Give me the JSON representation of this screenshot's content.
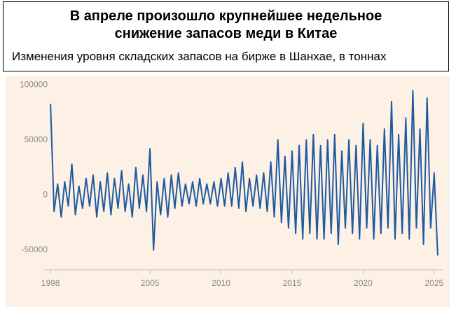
{
  "chart_data": {
    "type": "line",
    "title": "В апреле произошло крупнейшее недельное снижение запасов меди в Китае",
    "subtitle": "Изменения уровня складских запасов на бирже в Шанхае, в тоннах",
    "x": [
      1998,
      1998.25,
      1998.5,
      1998.75,
      1999,
      1999.25,
      1999.5,
      1999.75,
      2000,
      2000.25,
      2000.5,
      2000.75,
      2001,
      2001.25,
      2001.5,
      2001.75,
      2002,
      2002.25,
      2002.5,
      2002.75,
      2003,
      2003.25,
      2003.5,
      2003.75,
      2004,
      2004.25,
      2004.5,
      2004.75,
      2005,
      2005.25,
      2005.5,
      2005.75,
      2006,
      2006.25,
      2006.5,
      2006.75,
      2007,
      2007.25,
      2007.5,
      2007.75,
      2008,
      2008.25,
      2008.5,
      2008.75,
      2009,
      2009.25,
      2009.5,
      2009.75,
      2010,
      2010.25,
      2010.5,
      2010.75,
      2011,
      2011.25,
      2011.5,
      2011.75,
      2012,
      2012.25,
      2012.5,
      2012.75,
      2013,
      2013.25,
      2013.5,
      2013.75,
      2014,
      2014.25,
      2014.5,
      2014.75,
      2015,
      2015.25,
      2015.5,
      2015.75,
      2016,
      2016.25,
      2016.5,
      2016.75,
      2017,
      2017.25,
      2017.5,
      2017.75,
      2018,
      2018.25,
      2018.5,
      2018.75,
      2019,
      2019.25,
      2019.5,
      2019.75,
      2020,
      2020.25,
      2020.5,
      2020.75,
      2021,
      2021.25,
      2021.5,
      2021.75,
      2022,
      2022.25,
      2022.5,
      2022.75,
      2023,
      2023.25,
      2023.5,
      2023.75,
      2024,
      2024.25,
      2024.5,
      2024.75,
      2025,
      2025.25
    ],
    "series": [
      {
        "color": "#1f5a9e",
        "values": [
          83000,
          -15000,
          10000,
          -20000,
          12000,
          -10000,
          28000,
          -18000,
          8000,
          -12000,
          15000,
          -10000,
          18000,
          -20000,
          12000,
          -15000,
          20000,
          -18000,
          15000,
          -12000,
          22000,
          -15000,
          10000,
          -20000,
          25000,
          -12000,
          18000,
          -15000,
          42000,
          -50000,
          12000,
          -18000,
          15000,
          -20000,
          18000,
          -12000,
          20000,
          -10000,
          10000,
          -8000,
          12000,
          -10000,
          15000,
          -8000,
          10000,
          -8000,
          12000,
          -10000,
          15000,
          -10000,
          20000,
          -10000,
          25000,
          -12000,
          30000,
          -15000,
          15000,
          -10000,
          18000,
          -12000,
          20000,
          -15000,
          30000,
          -20000,
          50000,
          -25000,
          35000,
          -30000,
          40000,
          -35000,
          45000,
          -40000,
          50000,
          -35000,
          55000,
          -40000,
          45000,
          -40000,
          50000,
          -35000,
          55000,
          -45000,
          40000,
          -30000,
          50000,
          -35000,
          45000,
          -40000,
          65000,
          -30000,
          50000,
          -40000,
          45000,
          -35000,
          60000,
          -30000,
          85000,
          -40000,
          55000,
          -35000,
          70000,
          -40000,
          95000,
          -30000,
          60000,
          -45000,
          88000,
          -30000,
          20000,
          -55000
        ]
      }
    ],
    "xlim": [
      1997.5,
      2025.6
    ],
    "xticks": [
      1998,
      2005,
      2010,
      2015,
      2020,
      2025
    ],
    "ylim": [
      -68000,
      104000
    ],
    "yticks": [
      -50000,
      0,
      50000,
      100000
    ]
  }
}
